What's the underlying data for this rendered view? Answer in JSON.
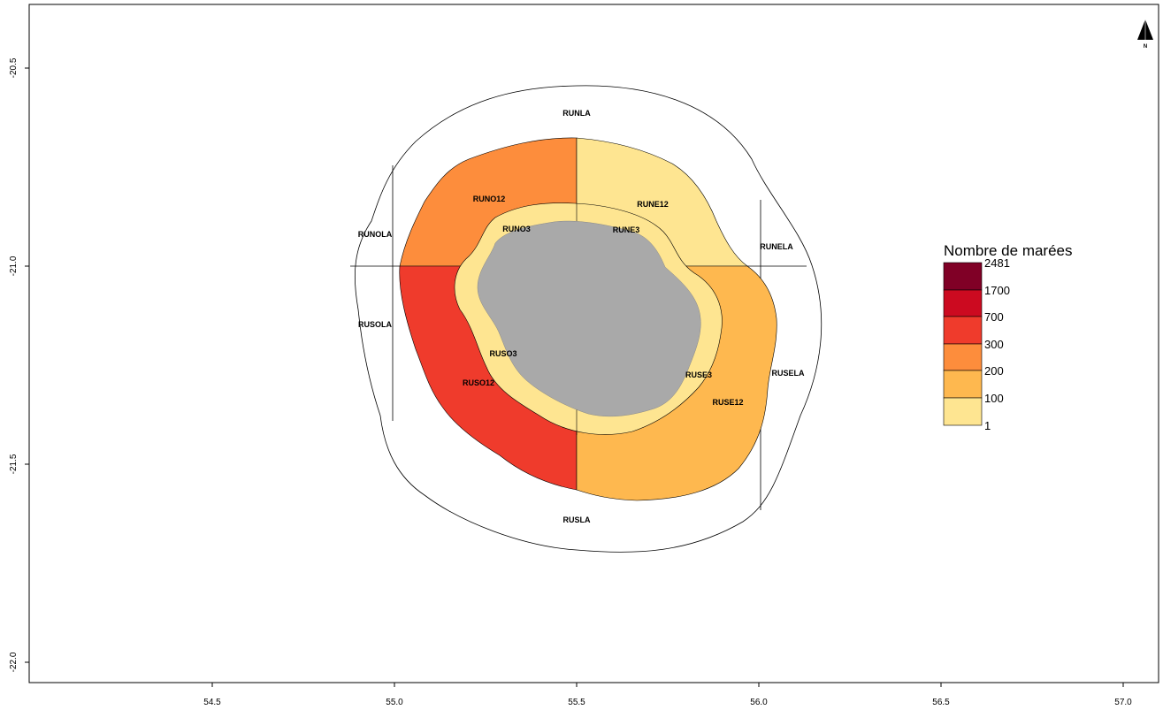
{
  "map": {
    "x_ticks": [
      "54.5",
      "55.0",
      "55.5",
      "56.0",
      "56.5",
      "57.0"
    ],
    "y_ticks": [
      "-20.5",
      "-21.0",
      "-21.5",
      "-22.0"
    ],
    "north_label": "N"
  },
  "zones": [
    {
      "id": "RUNLA",
      "label": "RUNLA",
      "category": "none"
    },
    {
      "id": "RUSLA",
      "label": "RUSLA",
      "category": "none"
    },
    {
      "id": "RUNOLA",
      "label": "RUNOLA",
      "category": "none"
    },
    {
      "id": "RUSOLA",
      "label": "RUSOLA",
      "category": "none"
    },
    {
      "id": "RUNELA",
      "label": "RUNELA",
      "category": "none"
    },
    {
      "id": "RUSELA",
      "label": "RUSELA",
      "category": "none"
    },
    {
      "id": "RUNO12",
      "label": "RUNO12",
      "category": "200-300"
    },
    {
      "id": "RUNE12",
      "label": "RUNE12",
      "category": "1-100"
    },
    {
      "id": "RUSO12",
      "label": "RUSO12",
      "category": "300-700"
    },
    {
      "id": "RUSE12",
      "label": "RUSE12",
      "category": "100-200"
    },
    {
      "id": "RUNO3",
      "label": "RUNO3",
      "category": "1-100"
    },
    {
      "id": "RUNE3",
      "label": "RUNE3",
      "category": "1-100"
    },
    {
      "id": "RUSO3",
      "label": "RUSO3",
      "category": "1-100"
    },
    {
      "id": "RUSE3",
      "label": "RUSE3",
      "category": "1-100"
    }
  ],
  "legend": {
    "title": "Nombre de marées",
    "breaks": [
      "2481",
      "1700",
      "700",
      "300",
      "200",
      "100",
      "1"
    ],
    "colors": [
      "#800026",
      "#cc0a20",
      "#ef3b2c",
      "#fd8d3c",
      "#feb84f",
      "#fee591"
    ]
  },
  "colors": {
    "land": "#a9a9a9",
    "background": "#ffffff",
    "stroke": "#000000"
  }
}
